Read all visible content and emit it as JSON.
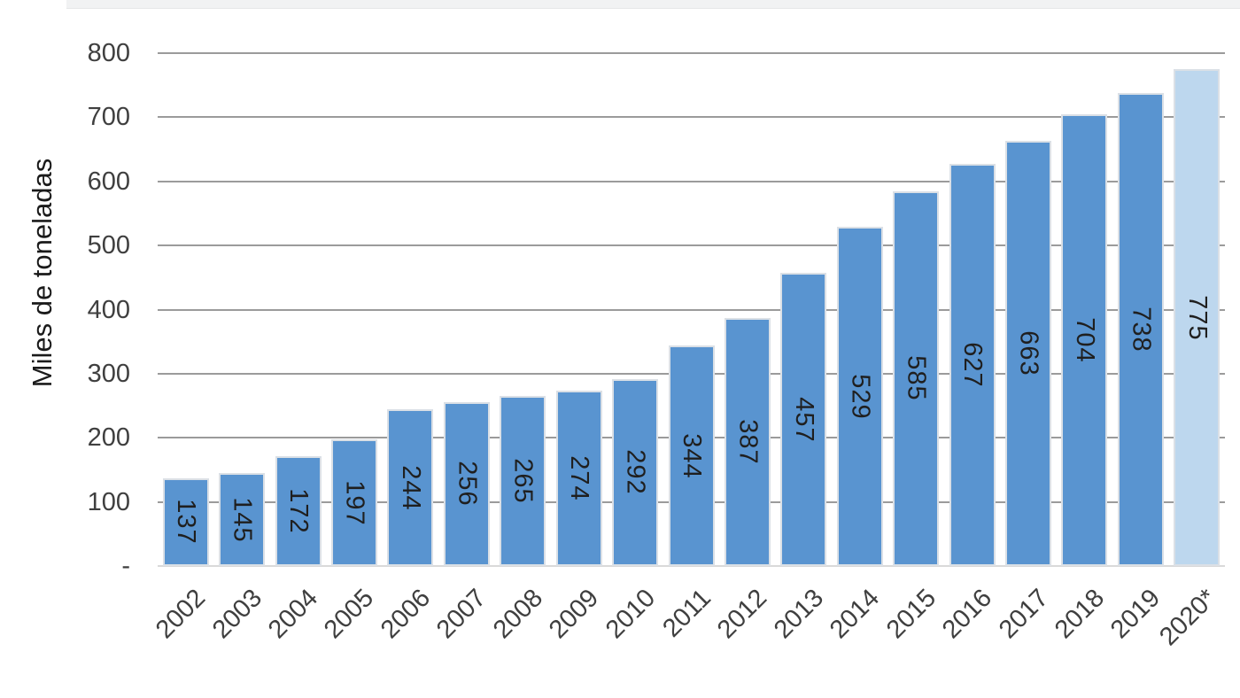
{
  "chart_data": {
    "type": "bar",
    "title": "",
    "ylabel": "Miles de toneladas",
    "xlabel": "",
    "categories": [
      "2002",
      "2003",
      "2004",
      "2005",
      "2006",
      "2007",
      "2008",
      "2009",
      "2010",
      "2011",
      "2012",
      "2013",
      "2014",
      "2015",
      "2016",
      "2017",
      "2018",
      "2019",
      "2020*"
    ],
    "values": [
      137,
      145,
      172,
      197,
      244,
      256,
      265,
      274,
      292,
      344,
      387,
      457,
      529,
      585,
      627,
      663,
      704,
      738,
      775
    ],
    "ylim": [
      0,
      800
    ],
    "ytick_step": 100,
    "ytick_zero_label": "-",
    "grid": true,
    "legend_position": "none",
    "value_labels": "inside-center-rotated",
    "colors": {
      "bar": "#5994D0",
      "bar_border": "#dbe0e6",
      "highlight_bar": "#BDD7EE",
      "gridline": "#9b9b9b",
      "baseline": "#d9d9d9",
      "tick_text": "#3f3f3f",
      "value_text": "#1f1f1f",
      "top_strip": "#f1f2f3"
    },
    "highlight_index": 18
  }
}
